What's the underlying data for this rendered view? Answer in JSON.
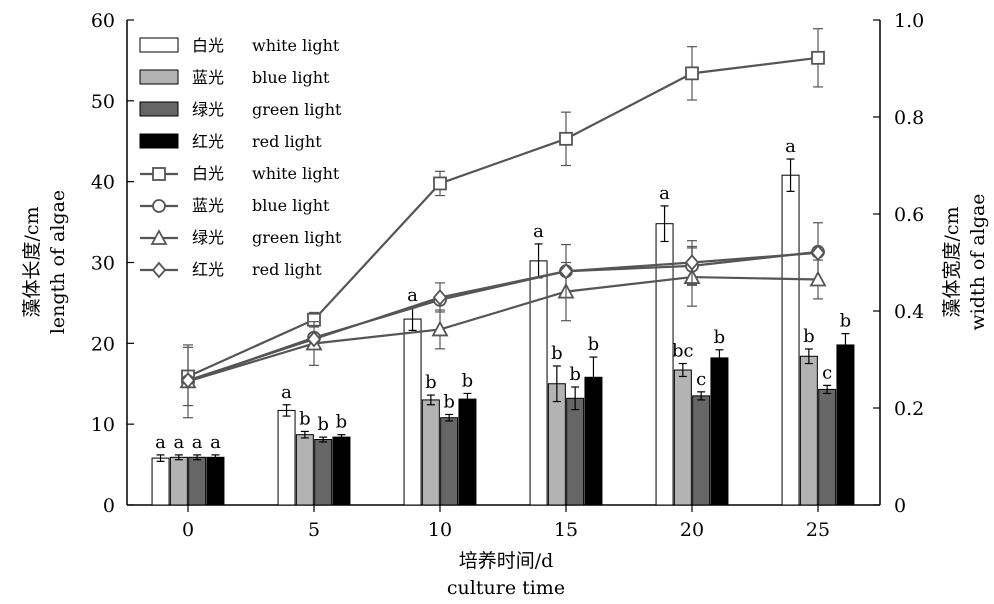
{
  "chart_data": {
    "type": "bar+line",
    "title": "",
    "xlabel": "培养时间/d",
    "xlabel_en": "culture time",
    "ylabel_left": "藻体长度/cm",
    "ylabel_left_en": "length of algae",
    "ylabel_right": "藻体宽度/cm",
    "ylabel_right_en": "width of algae",
    "categories": [
      "0",
      "5",
      "10",
      "15",
      "20",
      "25"
    ],
    "ylim_left": [
      0,
      60
    ],
    "yticks_left": [
      "0",
      "10",
      "20",
      "30",
      "40",
      "50",
      "60"
    ],
    "ylim_right": [
      0,
      1.0
    ],
    "yticks_right": [
      "0",
      "0.2",
      "0.4",
      "0.6",
      "0.8",
      "1.0"
    ],
    "legend_position": "top-left",
    "bar_series": [
      {
        "name": "白光",
        "name_en": "white light",
        "color": "#ffffff",
        "values": [
          5.8,
          11.7,
          23.0,
          30.2,
          34.8,
          40.8
        ],
        "errors": [
          0.4,
          0.7,
          1.4,
          2.1,
          2.2,
          2.0
        ],
        "labels": [
          "a",
          "a",
          "a",
          "a",
          "a",
          "a"
        ]
      },
      {
        "name": "蓝光",
        "name_en": "blue light",
        "color": "#b3b3b3",
        "values": [
          5.9,
          8.7,
          13.0,
          15.0,
          16.7,
          18.4
        ],
        "errors": [
          0.3,
          0.4,
          0.6,
          2.2,
          0.8,
          0.9
        ],
        "labels": [
          "a",
          "b",
          "b",
          "b",
          "bc",
          "b"
        ]
      },
      {
        "name": "绿光",
        "name_en": "green light",
        "color": "#666666",
        "values": [
          5.9,
          8.1,
          10.8,
          13.2,
          13.5,
          14.3
        ],
        "errors": [
          0.3,
          0.3,
          0.4,
          1.4,
          0.5,
          0.5
        ],
        "labels": [
          "a",
          "b",
          "b",
          "b",
          "c",
          "c"
        ]
      },
      {
        "name": "红光",
        "name_en": "red light",
        "color": "#000000",
        "values": [
          5.9,
          8.4,
          13.1,
          15.8,
          18.2,
          19.8
        ],
        "errors": [
          0.3,
          0.3,
          0.7,
          2.5,
          1.0,
          1.4
        ],
        "labels": [
          "a",
          "b",
          "b",
          "b",
          "b",
          "b"
        ]
      }
    ],
    "line_series": [
      {
        "name": "白光",
        "name_en": "white light",
        "marker": "square",
        "color": "#555555",
        "values": [
          0.265,
          0.382,
          0.663,
          0.755,
          0.89,
          0.922
        ],
        "errors": [
          0.06,
          0.015,
          0.025,
          0.055,
          0.055,
          0.06
        ]
      },
      {
        "name": "蓝光",
        "name_en": "blue light",
        "marker": "circle",
        "color": "#555555",
        "values": [
          0.255,
          0.345,
          0.423,
          0.482,
          0.493,
          0.522
        ],
        "errors": [
          0.0,
          0.0,
          0.0,
          0.0,
          0.04,
          0.06
        ]
      },
      {
        "name": "绿光",
        "name_en": "green light",
        "marker": "triangle",
        "color": "#555555",
        "values": [
          0.255,
          0.333,
          0.362,
          0.44,
          0.47,
          0.465
        ],
        "errors": [
          0.075,
          0.045,
          0.04,
          0.06,
          0.06,
          0.04
        ]
      },
      {
        "name": "红光",
        "name_en": "red light",
        "marker": "diamond",
        "color": "#555555",
        "values": [
          0.257,
          0.342,
          0.428,
          0.482,
          0.5,
          0.52
        ],
        "errors": [
          0.0,
          0.0,
          0.03,
          0.055,
          0.045,
          0.0
        ]
      }
    ]
  }
}
